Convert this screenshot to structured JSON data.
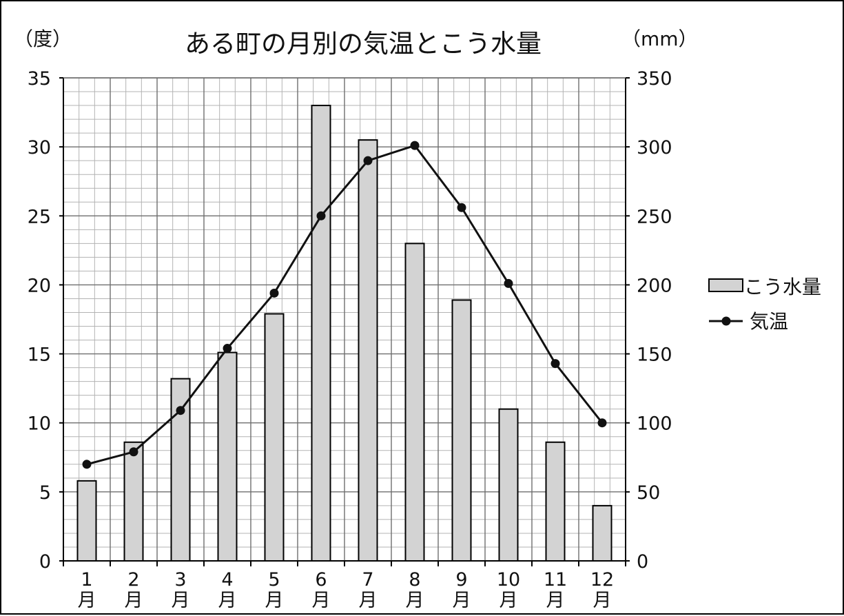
{
  "chart_data": {
    "type": "bar+line",
    "title": "ある町の月別の気温とこう水量",
    "y_left_unit": "（度）",
    "y_right_unit": "（mm）",
    "categories": [
      {
        "num": "1",
        "suffix": "月"
      },
      {
        "num": "2",
        "suffix": "月"
      },
      {
        "num": "3",
        "suffix": "月"
      },
      {
        "num": "4",
        "suffix": "月"
      },
      {
        "num": "5",
        "suffix": "月"
      },
      {
        "num": "6",
        "suffix": "月"
      },
      {
        "num": "7",
        "suffix": "月"
      },
      {
        "num": "8",
        "suffix": "月"
      },
      {
        "num": "9",
        "suffix": "月"
      },
      {
        "num": "10",
        "suffix": "月"
      },
      {
        "num": "11",
        "suffix": "月"
      },
      {
        "num": "12",
        "suffix": "月"
      }
    ],
    "y_left_ticks": [
      "0",
      "5",
      "10",
      "15",
      "20",
      "25",
      "30",
      "35"
    ],
    "y_right_ticks": [
      "0",
      "50",
      "100",
      "150",
      "200",
      "250",
      "300",
      "350"
    ],
    "y_left_range": [
      0,
      35
    ],
    "y_right_range": [
      0,
      350
    ],
    "grid": true,
    "legend_position": "right",
    "series": [
      {
        "name": "こう水量",
        "type": "bar",
        "axis": "right",
        "values": [
          58,
          86,
          132,
          151,
          179,
          330,
          305,
          230,
          189,
          110,
          86,
          40
        ],
        "color": "#d3d3d3"
      },
      {
        "name": "気温",
        "type": "line",
        "axis": "left",
        "values": [
          7.0,
          7.9,
          10.9,
          15.4,
          19.4,
          25.0,
          29.0,
          30.1,
          25.6,
          20.1,
          14.3,
          10.0
        ],
        "color": "#111111"
      }
    ]
  }
}
